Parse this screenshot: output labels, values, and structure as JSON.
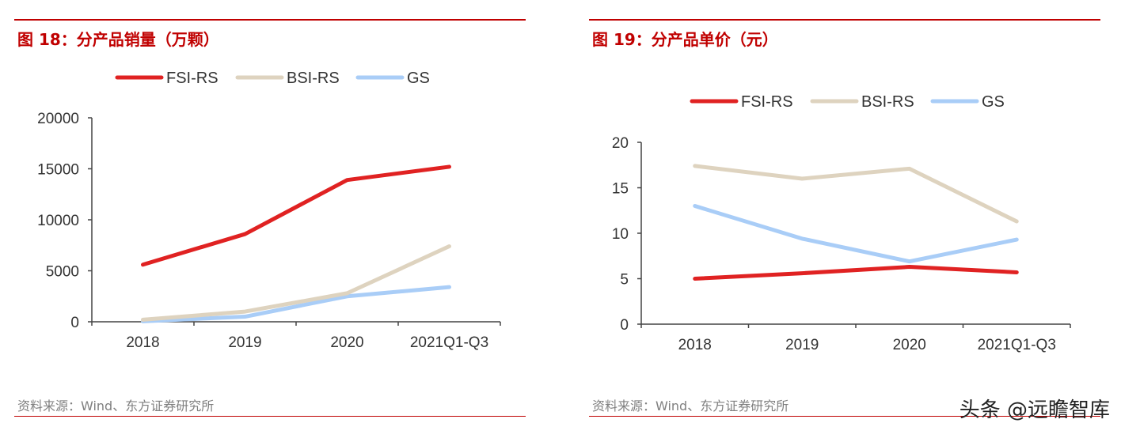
{
  "chart_data": [
    {
      "type": "line",
      "title": "图 18：分产品销量（万颗）",
      "categories": [
        "2018",
        "2019",
        "2020",
        "2021Q1-Q3"
      ],
      "yticks": [
        0,
        5000,
        10000,
        15000,
        20000
      ],
      "ylim": [
        0,
        20000
      ],
      "series": [
        {
          "name": "FSI-RS",
          "color": "#e02222",
          "values": [
            5600,
            8600,
            13900,
            15200
          ]
        },
        {
          "name": "BSI-RS",
          "color": "#ded3bf",
          "values": [
            200,
            1000,
            2800,
            7400
          ]
        },
        {
          "name": "GS",
          "color": "#a9cdf7",
          "values": [
            50,
            500,
            2500,
            3400
          ]
        }
      ],
      "legend": "top",
      "grid": false,
      "source": "资料来源：Wind、东方证券研究所"
    },
    {
      "type": "line",
      "title": "图 19：分产品单价（元）",
      "categories": [
        "2018",
        "2019",
        "2020",
        "2021Q1-Q3"
      ],
      "yticks": [
        0,
        5,
        10,
        15,
        20
      ],
      "ylim": [
        0,
        20
      ],
      "series": [
        {
          "name": "FSI-RS",
          "color": "#e02222",
          "values": [
            5.0,
            5.6,
            6.3,
            5.7
          ]
        },
        {
          "name": "BSI-RS",
          "color": "#ded3bf",
          "values": [
            17.4,
            16.0,
            17.1,
            11.3
          ]
        },
        {
          "name": "GS",
          "color": "#a9cdf7",
          "values": [
            13.0,
            9.4,
            6.9,
            9.3
          ]
        }
      ],
      "legend": "top",
      "grid": false,
      "source": "资料来源：Wind、东方证券研究所"
    }
  ],
  "watermark": "头条 @远瞻智库"
}
